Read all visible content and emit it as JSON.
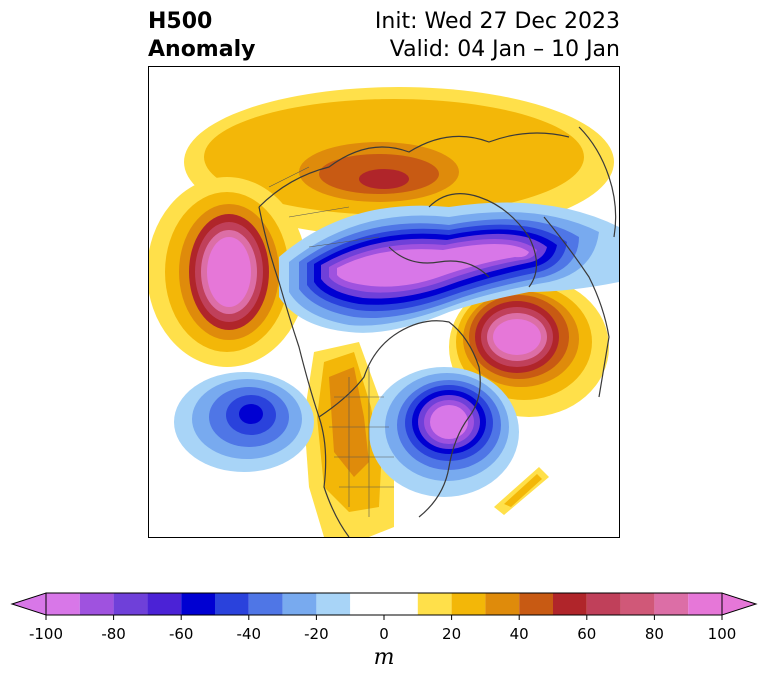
{
  "title": {
    "left_line1": "H500",
    "left_line2": "Anomaly",
    "right_line1": "Init: Wed 27 Dec 2023",
    "right_line2": "Valid: 04 Jan – 10 Jan"
  },
  "colorbar": {
    "units": "m",
    "tick_labels": [
      "-100",
      "-80",
      "-60",
      "-40",
      "-20",
      "0",
      "20",
      "40",
      "60",
      "80",
      "100"
    ],
    "levels": [
      -100,
      -90,
      -80,
      -70,
      -60,
      -50,
      -40,
      -30,
      -20,
      -10,
      10,
      20,
      30,
      40,
      50,
      60,
      70,
      80,
      90,
      100
    ],
    "colors": [
      "#d877e8",
      "#9f52df",
      "#6f40d9",
      "#4b22d6",
      "#0000d2",
      "#2a42dc",
      "#4f76e6",
      "#78aaef",
      "#a8d4f7",
      "#ffffff",
      "#ffe04a",
      "#f3b708",
      "#df8b0b",
      "#c85a13",
      "#b0252a",
      "#c0405a",
      "#d05878",
      "#dc6ea6",
      "#e677d8"
    ],
    "under_color": "#d877e8",
    "over_color": "#e677d8",
    "extend": "both"
  }
}
